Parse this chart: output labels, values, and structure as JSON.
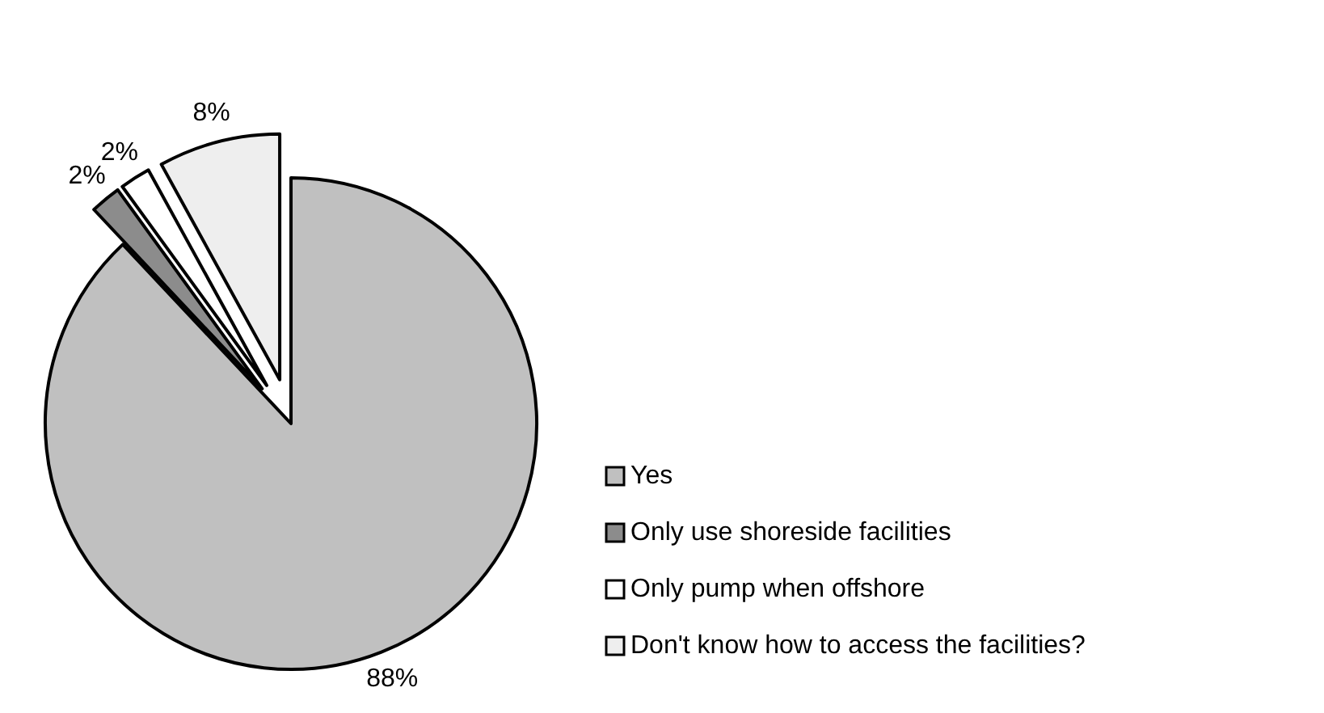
{
  "chart_data": {
    "type": "pie",
    "categories": [
      "Yes",
      "Only use shoreside facilities",
      "Only pump when offshore",
      "Don't know how to access the facilities?"
    ],
    "values": [
      88,
      2,
      2,
      8
    ],
    "colors": [
      "#c0c0c0",
      "#8c8c8c",
      "#ffffff",
      "#eeeeee"
    ],
    "value_labels": [
      "88%",
      "2%",
      "2%",
      "8%"
    ],
    "legend": "right"
  }
}
